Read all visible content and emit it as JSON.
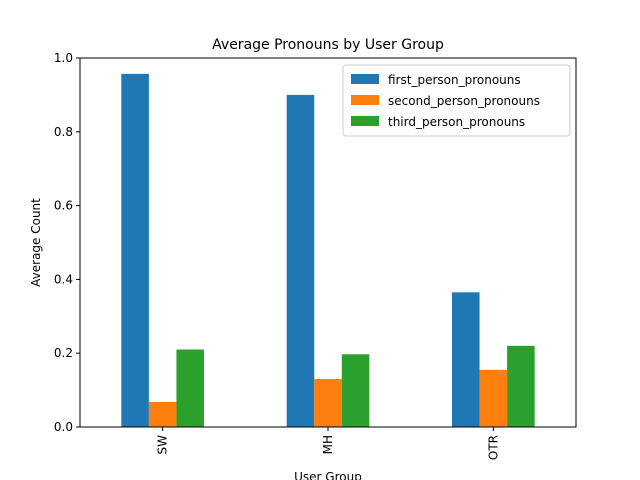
{
  "chart_data": {
    "type": "bar",
    "title": "Average Pronouns by User Group",
    "xlabel": "User Group",
    "ylabel": "Average Count",
    "categories": [
      "SW",
      "MH",
      "OTR"
    ],
    "series": [
      {
        "name": "first_person_pronouns",
        "color": "#1f77b4",
        "values": [
          0.957,
          0.9,
          0.365
        ]
      },
      {
        "name": "second_person_pronouns",
        "color": "#ff7f0e",
        "values": [
          0.068,
          0.13,
          0.155
        ]
      },
      {
        "name": "third_person_pronouns",
        "color": "#2ca02c",
        "values": [
          0.21,
          0.197,
          0.22
        ]
      }
    ],
    "ylim": [
      0,
      1.0
    ],
    "yticks": [
      0.0,
      0.2,
      0.4,
      0.6,
      0.8,
      1.0
    ],
    "ytick_labels": [
      "0.0",
      "0.2",
      "0.4",
      "0.6",
      "0.8",
      "1.0"
    ],
    "grid": false,
    "legend_position": "top-right"
  }
}
